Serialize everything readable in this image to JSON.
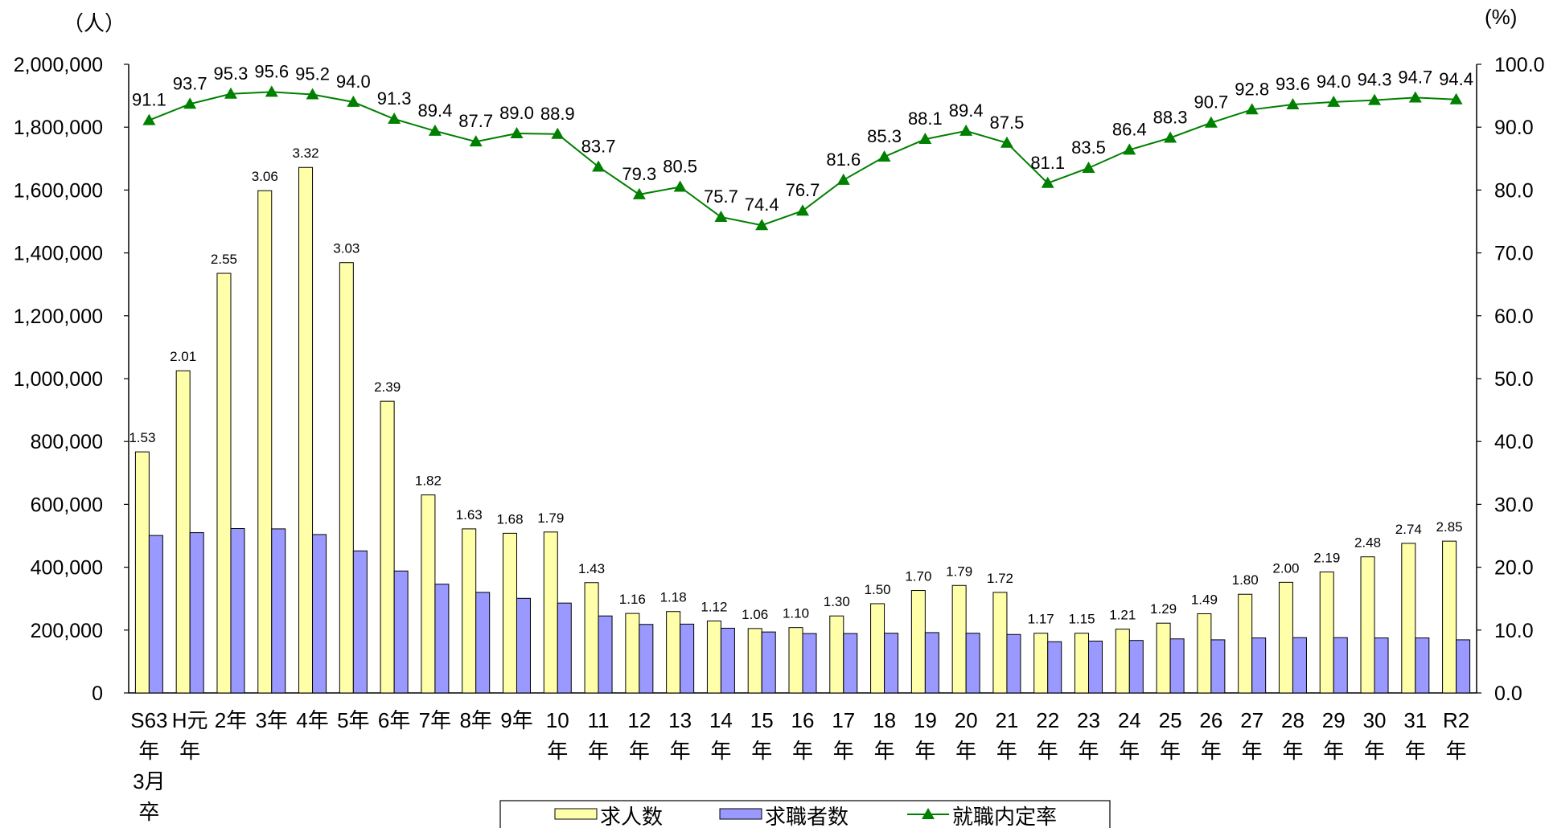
{
  "chart_data": {
    "type": "bar",
    "units": {
      "left": "（人）",
      "right": "(%)"
    },
    "y_left": {
      "min": 0,
      "max": 2000000,
      "step": 200000,
      "tick_labels": [
        "0",
        "200,000",
        "400,000",
        "600,000",
        "800,000",
        "1,000,000",
        "1,200,000",
        "1,400,000",
        "1,600,000",
        "1,800,000",
        "2,000,000"
      ]
    },
    "y_right": {
      "min": 0,
      "max": 100,
      "step": 10,
      "tick_labels": [
        "0.0",
        "10.0",
        "20.0",
        "30.0",
        "40.0",
        "50.0",
        "60.0",
        "70.0",
        "80.0",
        "90.0",
        "100.0"
      ]
    },
    "categories": [
      [
        "S63",
        "年",
        "3月",
        "卒"
      ],
      [
        "H元",
        "年"
      ],
      [
        "2年"
      ],
      [
        "3年"
      ],
      [
        "4年"
      ],
      [
        "5年"
      ],
      [
        "6年"
      ],
      [
        "7年"
      ],
      [
        "8年"
      ],
      [
        "9年"
      ],
      [
        "10",
        "年"
      ],
      [
        "11",
        "年"
      ],
      [
        "12",
        "年"
      ],
      [
        "13",
        "年"
      ],
      [
        "14",
        "年"
      ],
      [
        "15",
        "年"
      ],
      [
        "16",
        "年"
      ],
      [
        "17",
        "年"
      ],
      [
        "18",
        "年"
      ],
      [
        "19",
        "年"
      ],
      [
        "20",
        "年"
      ],
      [
        "21",
        "年"
      ],
      [
        "22",
        "年"
      ],
      [
        "23",
        "年"
      ],
      [
        "24",
        "年"
      ],
      [
        "25",
        "年"
      ],
      [
        "26",
        "年"
      ],
      [
        "27",
        "年"
      ],
      [
        "28",
        "年"
      ],
      [
        "29",
        "年"
      ],
      [
        "30",
        "年"
      ],
      [
        "31",
        "年"
      ],
      [
        "R2",
        "年"
      ]
    ],
    "series": [
      {
        "name": "求人数",
        "axis": "left",
        "type": "bar",
        "color": "#FFFFAA",
        "values": [
          767000,
          1025000,
          1335000,
          1598000,
          1672000,
          1369000,
          928000,
          630000,
          522000,
          508000,
          512000,
          351000,
          253000,
          259000,
          229000,
          205000,
          208000,
          245000,
          284000,
          326000,
          342000,
          320000,
          190000,
          190000,
          203000,
          222000,
          252000,
          314000,
          352000,
          385000,
          433000,
          476000,
          483000
        ]
      },
      {
        "name": "求職者数",
        "axis": "left",
        "type": "bar",
        "color": "#9999FF",
        "values": [
          501000,
          510000,
          523000,
          522000,
          504000,
          452000,
          388000,
          346000,
          320000,
          301000,
          286000,
          245000,
          218000,
          219000,
          206000,
          194000,
          189000,
          189000,
          190000,
          192000,
          190000,
          186000,
          163000,
          165000,
          167000,
          172000,
          169000,
          175000,
          176000,
          176000,
          175000,
          175000,
          169000
        ]
      },
      {
        "name": "就職内定率",
        "axis": "right",
        "type": "line",
        "color": "#008000",
        "values": [
          91.1,
          93.7,
          95.3,
          95.6,
          95.2,
          94.0,
          91.3,
          89.4,
          87.7,
          89.0,
          88.9,
          83.7,
          79.3,
          80.5,
          75.7,
          74.4,
          76.7,
          81.6,
          85.3,
          88.1,
          89.4,
          87.5,
          81.1,
          83.5,
          86.4,
          88.3,
          90.7,
          92.8,
          93.6,
          94.0,
          94.3,
          94.7,
          94.4
        ]
      }
    ],
    "bar_labels": [
      "1.53",
      "2.01",
      "2.55",
      "3.06",
      "3.32",
      "3.03",
      "2.39",
      "1.82",
      "1.63",
      "1.68",
      "1.79",
      "1.43",
      "1.16",
      "1.18",
      "1.12",
      "1.06",
      "1.10",
      "1.30",
      "1.50",
      "1.70",
      "1.79",
      "1.72",
      "1.17",
      "1.15",
      "1.21",
      "1.29",
      "1.49",
      "1.80",
      "2.00",
      "2.19",
      "2.48",
      "2.74",
      "2.85"
    ],
    "rate_labels": [
      "91.1",
      "93.7",
      "95.3",
      "95.6",
      "95.2",
      "94.0",
      "91.3",
      "89.4",
      "87.7",
      "89.0",
      "88.9",
      "83.7",
      "79.3",
      "80.5",
      "75.7",
      "74.4",
      "76.7",
      "81.6",
      "85.3",
      "88.1",
      "89.4",
      "87.5",
      "81.1",
      "83.5",
      "86.4",
      "88.3",
      "90.7",
      "92.8",
      "93.6",
      "94.0",
      "94.3",
      "94.7",
      "94.4"
    ],
    "legend": {
      "placement": "bottom",
      "items": [
        "求人数",
        "求職者数",
        "就職内定率"
      ]
    },
    "grid": false
  }
}
